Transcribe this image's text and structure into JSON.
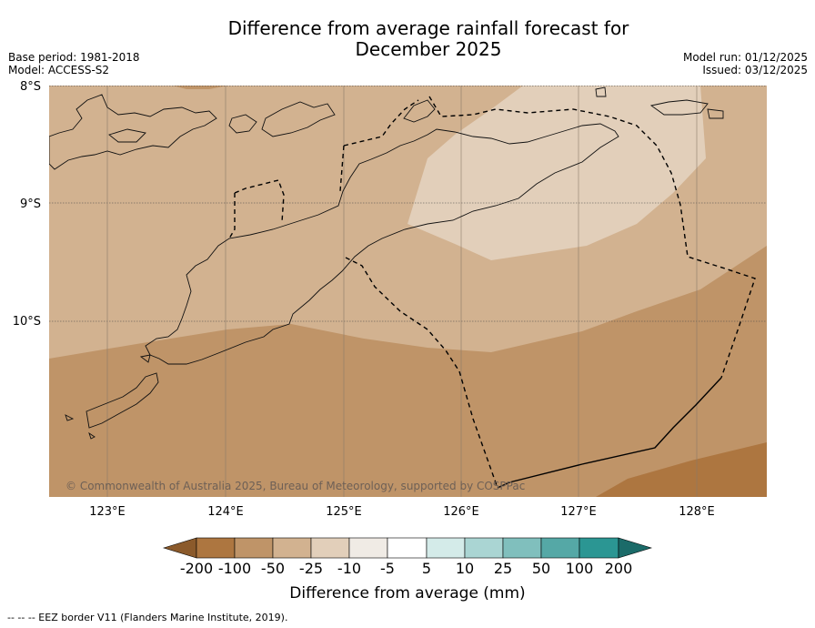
{
  "title_line1": "Difference from average rainfall forecast for",
  "title_line2": "December 2025",
  "base_period": "Base period: 1981-2018",
  "model": "Model: ACCESS-S2",
  "model_run": "Model run: 01/12/2025",
  "issued": "Issued: 03/12/2025",
  "copyright": "© Commonwealth of Australia 2025, Bureau of Meteorology, supported by COSPPac",
  "lat_labels": [
    "8°S",
    "9°S",
    "10°S"
  ],
  "lon_labels": [
    "123°E",
    "124°E",
    "125°E",
    "126°E",
    "127°E",
    "128°E"
  ],
  "colorbar": {
    "title": "Difference from average (mm)",
    "ticks": [
      "-200",
      "-100",
      "-50",
      "-25",
      "-10",
      "-5",
      "5",
      "10",
      "25",
      "50",
      "100",
      "200"
    ],
    "colors": [
      "#8b5a2b",
      "#ad7640",
      "#bf9468",
      "#d2b290",
      "#e2cfba",
      "#f0ebe5",
      "#ffffff",
      "#d4ebe9",
      "#aad5d3",
      "#80bfbd",
      "#55a8a6",
      "#2b9693",
      "#1b6b69"
    ]
  },
  "footer": "--  --  -- EEZ border V11 (Flanders Marine Institute, 2019).",
  "colors": {
    "zone_minus25": "#d2b290",
    "zone_minus50": "#bf9468",
    "zone_minus100": "#ad7640",
    "zone_minus10": "#e2cfba"
  }
}
